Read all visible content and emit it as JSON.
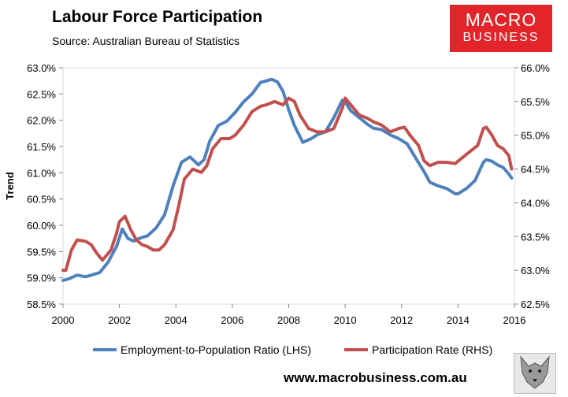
{
  "header": {
    "title": "Labour Force Participation",
    "subtitle": "Source: Australian Bureau of Statistics"
  },
  "logo": {
    "line1": "MACRO",
    "line2": "BUSINESS",
    "color": "#e1252b"
  },
  "footer": {
    "url": "www.macrobusiness.com.au"
  },
  "chart_data": {
    "type": "line",
    "ylabel": "Trend",
    "xlim": [
      2000,
      2016
    ],
    "x_ticks": [
      "2000",
      "2002",
      "2004",
      "2006",
      "2008",
      "2010",
      "2012",
      "2014",
      "2016"
    ],
    "y_left": {
      "range": [
        58.5,
        63.0
      ],
      "ticks": [
        "58.5%",
        "59.0%",
        "59.5%",
        "60.0%",
        "60.5%",
        "61.0%",
        "61.5%",
        "62.0%",
        "62.5%",
        "63.0%"
      ]
    },
    "y_right": {
      "range": [
        62.5,
        66.0
      ],
      "ticks": [
        "62.5%",
        "63.0%",
        "63.5%",
        "64.0%",
        "64.5%",
        "65.0%",
        "65.5%",
        "66.0%"
      ]
    },
    "grid": false,
    "legend": "bottom",
    "series": [
      {
        "name": "Employment-to-Population Ratio (LHS)",
        "axis": "left",
        "color": "#4f81bd",
        "x": [
          2000.0,
          2000.2,
          2000.5,
          2000.8,
          2001.0,
          2001.3,
          2001.6,
          2001.9,
          2002.1,
          2002.3,
          2002.5,
          2002.7,
          2003.0,
          2003.3,
          2003.6,
          2003.9,
          2004.2,
          2004.5,
          2004.8,
          2005.0,
          2005.2,
          2005.5,
          2005.8,
          2006.1,
          2006.4,
          2006.7,
          2007.0,
          2007.2,
          2007.4,
          2007.6,
          2007.8,
          2008.0,
          2008.2,
          2008.5,
          2008.8,
          2009.0,
          2009.3,
          2009.6,
          2009.9,
          2010.0,
          2010.2,
          2010.5,
          2010.8,
          2011.0,
          2011.3,
          2011.6,
          2011.9,
          2012.2,
          2012.5,
          2012.8,
          2013.0,
          2013.3,
          2013.6,
          2013.9,
          2014.0,
          2014.3,
          2014.6,
          2014.9,
          2015.0,
          2015.2,
          2015.4,
          2015.6,
          2015.8,
          2015.9
        ],
        "values": [
          58.95,
          58.98,
          59.05,
          59.02,
          59.05,
          59.1,
          59.3,
          59.6,
          59.93,
          59.75,
          59.7,
          59.75,
          59.8,
          59.95,
          60.2,
          60.75,
          61.2,
          61.3,
          61.15,
          61.25,
          61.6,
          61.9,
          61.98,
          62.15,
          62.35,
          62.5,
          62.72,
          62.75,
          62.78,
          62.73,
          62.55,
          62.2,
          61.9,
          61.58,
          61.65,
          61.72,
          61.78,
          62.05,
          62.38,
          62.35,
          62.18,
          62.05,
          61.92,
          61.85,
          61.82,
          61.72,
          61.65,
          61.55,
          61.28,
          61.02,
          60.82,
          60.75,
          60.7,
          60.6,
          60.6,
          60.7,
          60.85,
          61.2,
          61.25,
          61.22,
          61.15,
          61.1,
          60.98,
          60.9
        ]
      },
      {
        "name": "Participation Rate (RHS)",
        "axis": "right",
        "color": "#c0504d",
        "x": [
          2000.0,
          2000.1,
          2000.3,
          2000.5,
          2000.8,
          2001.0,
          2001.2,
          2001.4,
          2001.7,
          2001.9,
          2002.0,
          2002.2,
          2002.4,
          2002.6,
          2002.8,
          2003.0,
          2003.2,
          2003.4,
          2003.6,
          2003.9,
          2004.1,
          2004.3,
          2004.6,
          2004.9,
          2005.1,
          2005.3,
          2005.6,
          2005.9,
          2006.1,
          2006.4,
          2006.7,
          2007.0,
          2007.2,
          2007.5,
          2007.8,
          2008.0,
          2008.2,
          2008.4,
          2008.7,
          2009.0,
          2009.3,
          2009.6,
          2009.9,
          2010.0,
          2010.2,
          2010.5,
          2010.8,
          2011.0,
          2011.3,
          2011.6,
          2011.9,
          2012.1,
          2012.3,
          2012.6,
          2012.8,
          2013.0,
          2013.3,
          2013.6,
          2013.9,
          2014.1,
          2014.4,
          2014.7,
          2014.9,
          2015.0,
          2015.2,
          2015.4,
          2015.6,
          2015.8,
          2015.9
        ],
        "values": [
          63.0,
          63.0,
          63.3,
          63.45,
          63.43,
          63.38,
          63.25,
          63.15,
          63.3,
          63.55,
          63.72,
          63.8,
          63.6,
          63.45,
          63.38,
          63.35,
          63.3,
          63.3,
          63.38,
          63.6,
          63.95,
          64.35,
          64.5,
          64.45,
          64.55,
          64.8,
          64.95,
          64.95,
          65.0,
          65.15,
          65.35,
          65.43,
          65.45,
          65.5,
          65.45,
          65.55,
          65.5,
          65.3,
          65.1,
          65.05,
          65.05,
          65.1,
          65.4,
          65.55,
          65.45,
          65.3,
          65.25,
          65.2,
          65.15,
          65.05,
          65.1,
          65.12,
          65.0,
          64.85,
          64.62,
          64.55,
          64.6,
          64.6,
          64.58,
          64.65,
          64.75,
          64.85,
          65.1,
          65.12,
          65.0,
          64.85,
          64.8,
          64.7,
          64.5
        ]
      }
    ]
  }
}
